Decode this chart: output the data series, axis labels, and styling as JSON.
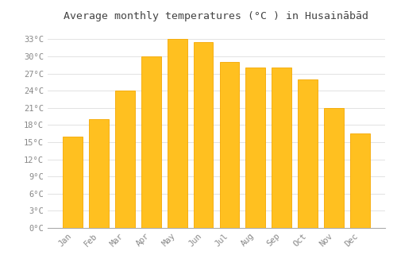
{
  "title": "Average monthly temperatures (°C ) in Husainābād",
  "months": [
    "Jan",
    "Feb",
    "Mar",
    "Apr",
    "May",
    "Jun",
    "Jul",
    "Aug",
    "Sep",
    "Oct",
    "Nov",
    "Dec"
  ],
  "values": [
    16,
    19,
    24,
    30,
    33,
    32.5,
    29,
    28,
    28,
    26,
    21,
    16.5
  ],
  "bar_color": "#FFC020",
  "bar_edge_color": "#F5A800",
  "background_color": "#FFFFFF",
  "grid_color": "#DDDDDD",
  "tick_label_color": "#888888",
  "title_color": "#444444",
  "ylim": [
    0,
    35
  ],
  "yticks": [
    0,
    3,
    6,
    9,
    12,
    15,
    18,
    21,
    24,
    27,
    30,
    33
  ],
  "ylabel_suffix": "°C",
  "title_fontsize": 9.5,
  "tick_fontsize": 7.5,
  "bar_width": 0.75
}
